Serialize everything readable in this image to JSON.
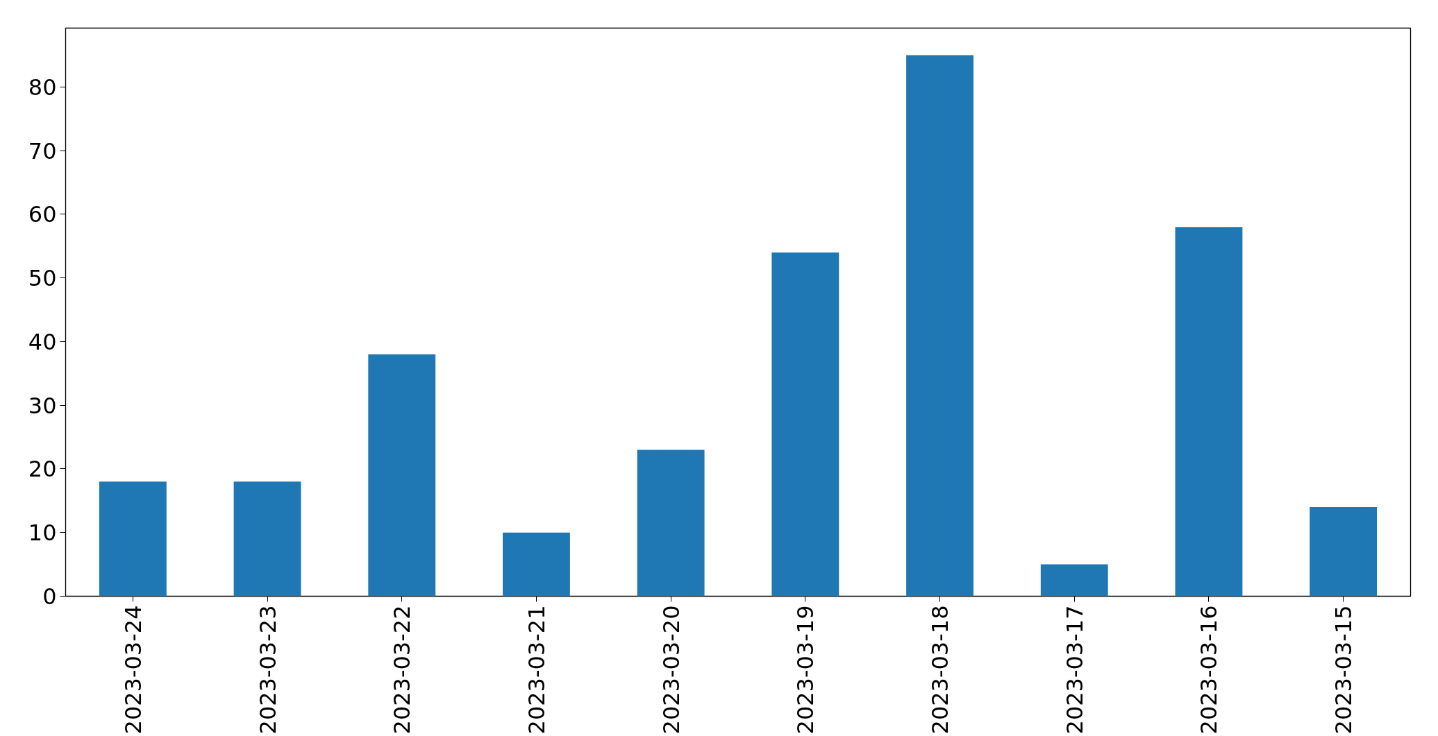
{
  "chart_data": {
    "type": "bar",
    "categories": [
      "2023-03-24",
      "2023-03-23",
      "2023-03-22",
      "2023-03-21",
      "2023-03-20",
      "2023-03-19",
      "2023-03-18",
      "2023-03-17",
      "2023-03-16",
      "2023-03-15"
    ],
    "values": [
      18,
      18,
      38,
      10,
      23,
      54,
      85,
      5,
      58,
      14
    ],
    "color": "#1f77b4",
    "ylim": [
      0,
      89.25
    ],
    "yticks": [
      0,
      10,
      20,
      30,
      40,
      50,
      60,
      70,
      80
    ],
    "grid": false
  }
}
